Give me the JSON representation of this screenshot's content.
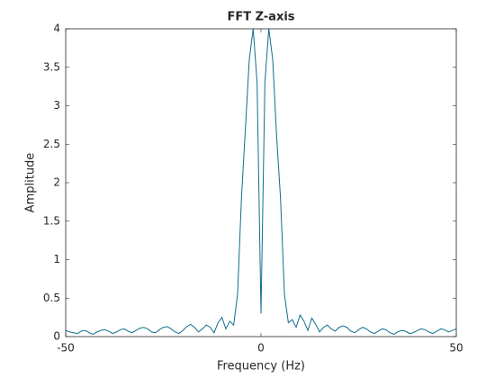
{
  "chart_data": {
    "type": "line",
    "title": "FFT Z-axis",
    "xlabel": "Frequency (Hz)",
    "ylabel": "Amplitude",
    "x": [
      -50,
      -49,
      -48,
      -47,
      -46,
      -45,
      -44,
      -43,
      -42,
      -41,
      -40,
      -39,
      -38,
      -37,
      -36,
      -35,
      -34,
      -33,
      -32,
      -31,
      -30,
      -29,
      -28,
      -27,
      -26,
      -25,
      -24,
      -23,
      -22,
      -21,
      -20,
      -19,
      -18,
      -17,
      -16,
      -15,
      -14,
      -13,
      -12,
      -11,
      -10,
      -9,
      -8,
      -7,
      -6,
      -5,
      -4,
      -3,
      -2,
      -1,
      0,
      1,
      2,
      3,
      4,
      5,
      6,
      7,
      8,
      9,
      10,
      11,
      12,
      13,
      14,
      15,
      16,
      17,
      18,
      19,
      20,
      21,
      22,
      23,
      24,
      25,
      26,
      27,
      28,
      29,
      30,
      31,
      32,
      33,
      34,
      35,
      36,
      37,
      38,
      39,
      40,
      41,
      42,
      43,
      44,
      45,
      46,
      47,
      48,
      49,
      50
    ],
    "series": [
      {
        "name": "FFT",
        "color": "#0f6e8e",
        "values": [
          0.08,
          0.06,
          0.05,
          0.04,
          0.07,
          0.08,
          0.05,
          0.03,
          0.06,
          0.08,
          0.09,
          0.07,
          0.04,
          0.06,
          0.09,
          0.1,
          0.07,
          0.05,
          0.08,
          0.11,
          0.12,
          0.1,
          0.06,
          0.05,
          0.09,
          0.12,
          0.13,
          0.1,
          0.06,
          0.04,
          0.08,
          0.13,
          0.16,
          0.12,
          0.06,
          0.1,
          0.15,
          0.12,
          0.05,
          0.18,
          0.25,
          0.1,
          0.2,
          0.15,
          0.55,
          1.8,
          2.7,
          3.6,
          4,
          3.3,
          0.3,
          3.3,
          4,
          3.6,
          2.6,
          1.8,
          0.55,
          0.18,
          0.22,
          0.12,
          0.28,
          0.2,
          0.08,
          0.24,
          0.16,
          0.06,
          0.12,
          0.15,
          0.1,
          0.07,
          0.12,
          0.14,
          0.12,
          0.07,
          0.05,
          0.09,
          0.12,
          0.1,
          0.06,
          0.04,
          0.07,
          0.1,
          0.09,
          0.05,
          0.03,
          0.06,
          0.08,
          0.07,
          0.04,
          0.05,
          0.08,
          0.1,
          0.09,
          0.06,
          0.04,
          0.07,
          0.1,
          0.09,
          0.06,
          0.08,
          0.1
        ]
      }
    ],
    "xlim": [
      -50,
      50
    ],
    "xticks": [
      -50,
      0,
      50
    ],
    "ylim": [
      0,
      4
    ],
    "yticks": [
      0,
      0.5,
      1,
      1.5,
      2,
      2.5,
      3,
      3.5,
      4
    ],
    "grid": false
  }
}
